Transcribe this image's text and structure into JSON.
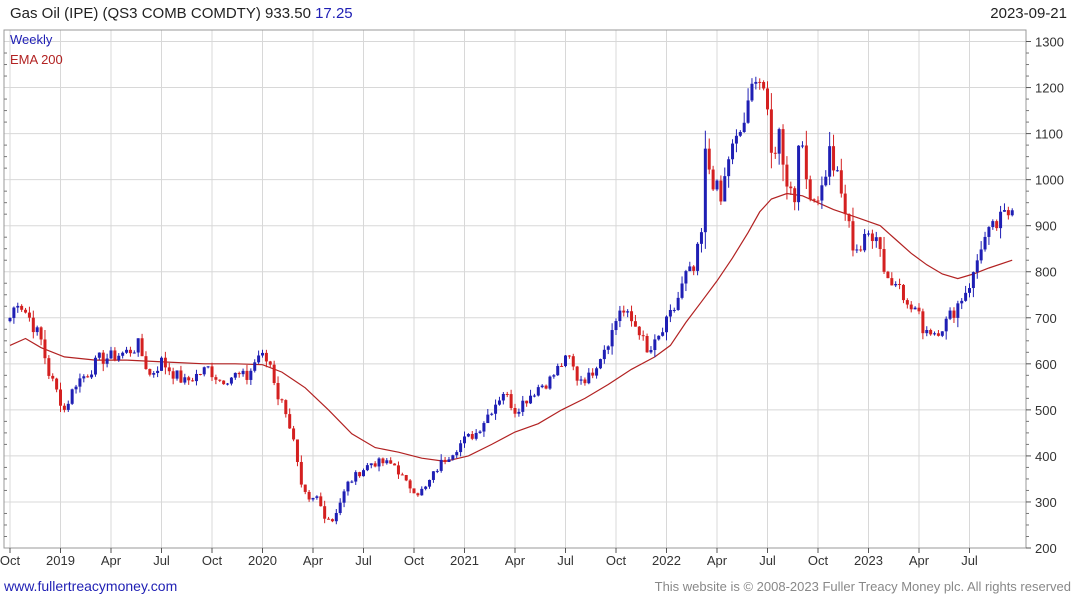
{
  "header": {
    "title": "Gas Oil (IPE) (QS3 COMB COMDTY)",
    "last_price": "933.50",
    "change": "17.25",
    "date": "2023-09-21"
  },
  "legend": {
    "period": "Weekly",
    "indicator": "EMA 200"
  },
  "footer": {
    "link": "www.fullertreacymoney.com",
    "copyright": "This website is © 2008-2023 Fuller Treacy Money plc. All rights reserved"
  },
  "colors": {
    "up": "#1f1fb4",
    "down": "#d42020",
    "ema": "#b22222",
    "grid": "#d8d8d8"
  },
  "chart_data": {
    "type": "candlestick",
    "title": "Gas Oil (IPE) (QS3 COMB COMDTY) 933.50 17.25",
    "period": "Weekly",
    "y_range": [
      200,
      1325
    ],
    "y_ticks": [
      "200",
      "300",
      "400",
      "500",
      "600",
      "700",
      "800",
      "900",
      "1000",
      "1100",
      "1200",
      "1300"
    ],
    "x_range": [
      0,
      260
    ],
    "x_ticks": [
      {
        "label": "Oct",
        "week": 0
      },
      {
        "label": "2019",
        "week": 13
      },
      {
        "label": "Apr",
        "week": 26
      },
      {
        "label": "Jul",
        "week": 39
      },
      {
        "label": "Oct",
        "week": 52
      },
      {
        "label": "2020",
        "week": 65
      },
      {
        "label": "Apr",
        "week": 78
      },
      {
        "label": "Jul",
        "week": 91
      },
      {
        "label": "Oct",
        "week": 104
      },
      {
        "label": "2021",
        "week": 117
      },
      {
        "label": "Apr",
        "week": 130
      },
      {
        "label": "Jul",
        "week": 143
      },
      {
        "label": "Oct",
        "week": 156
      },
      {
        "label": "2022",
        "week": 169
      },
      {
        "label": "Apr",
        "week": 182
      },
      {
        "label": "Jul",
        "week": 195
      },
      {
        "label": "Oct",
        "week": 208
      },
      {
        "label": "2023",
        "week": 221
      },
      {
        "label": "Apr",
        "week": 234
      },
      {
        "label": "Jul",
        "week": 247
      }
    ],
    "close_anchors": [
      [
        0,
        700
      ],
      [
        2,
        740
      ],
      [
        5,
        700
      ],
      [
        8,
        650
      ],
      [
        10,
        580
      ],
      [
        12,
        540
      ],
      [
        14,
        500
      ],
      [
        17,
        560
      ],
      [
        20,
        580
      ],
      [
        23,
        610
      ],
      [
        26,
        615
      ],
      [
        30,
        625
      ],
      [
        33,
        640
      ],
      [
        36,
        575
      ],
      [
        39,
        605
      ],
      [
        42,
        580
      ],
      [
        45,
        560
      ],
      [
        48,
        575
      ],
      [
        51,
        590
      ],
      [
        54,
        565
      ],
      [
        58,
        575
      ],
      [
        61,
        570
      ],
      [
        64,
        620
      ],
      [
        67,
        600
      ],
      [
        69,
        530
      ],
      [
        71,
        500
      ],
      [
        73,
        430
      ],
      [
        75,
        330
      ],
      [
        77,
        300
      ],
      [
        79,
        310
      ],
      [
        81,
        270
      ],
      [
        83,
        260
      ],
      [
        85,
        300
      ],
      [
        87,
        340
      ],
      [
        90,
        365
      ],
      [
        93,
        385
      ],
      [
        96,
        385
      ],
      [
        99,
        380
      ],
      [
        102,
        340
      ],
      [
        105,
        320
      ],
      [
        107,
        330
      ],
      [
        109,
        360
      ],
      [
        111,
        385
      ],
      [
        114,
        410
      ],
      [
        117,
        435
      ],
      [
        120,
        450
      ],
      [
        123,
        490
      ],
      [
        125,
        515
      ],
      [
        127,
        540
      ],
      [
        130,
        500
      ],
      [
        133,
        525
      ],
      [
        136,
        550
      ],
      [
        139,
        565
      ],
      [
        142,
        600
      ],
      [
        144,
        610
      ],
      [
        146,
        570
      ],
      [
        149,
        570
      ],
      [
        152,
        620
      ],
      [
        155,
        670
      ],
      [
        157,
        720
      ],
      [
        159,
        700
      ],
      [
        162,
        675
      ],
      [
        164,
        620
      ],
      [
        166,
        640
      ],
      [
        168,
        670
      ],
      [
        171,
        720
      ],
      [
        174,
        790
      ],
      [
        176,
        800
      ],
      [
        178,
        880
      ],
      [
        179,
        1050
      ],
      [
        181,
        1000
      ],
      [
        183,
        950
      ],
      [
        185,
        1050
      ],
      [
        187,
        1080
      ],
      [
        190,
        1150
      ],
      [
        192,
        1240
      ],
      [
        194,
        1200
      ],
      [
        196,
        1050
      ],
      [
        198,
        1100
      ],
      [
        200,
        1000
      ],
      [
        202,
        960
      ],
      [
        203,
        1100
      ],
      [
        205,
        1000
      ],
      [
        207,
        960
      ],
      [
        209,
        980
      ],
      [
        211,
        1060
      ],
      [
        213,
        1000
      ],
      [
        215,
        930
      ],
      [
        217,
        860
      ],
      [
        219,
        850
      ],
      [
        221,
        880
      ],
      [
        223,
        890
      ],
      [
        225,
        810
      ],
      [
        227,
        770
      ],
      [
        229,
        790
      ],
      [
        231,
        720
      ],
      [
        233,
        720
      ],
      [
        235,
        680
      ],
      [
        238,
        670
      ],
      [
        241,
        690
      ],
      [
        244,
        730
      ],
      [
        246,
        760
      ],
      [
        248,
        790
      ],
      [
        250,
        860
      ],
      [
        252,
        880
      ],
      [
        254,
        900
      ],
      [
        256,
        920
      ],
      [
        258,
        933.5
      ]
    ],
    "ema200_anchors": [
      [
        0,
        640
      ],
      [
        4,
        655
      ],
      [
        8,
        635
      ],
      [
        14,
        615
      ],
      [
        22,
        608
      ],
      [
        30,
        608
      ],
      [
        40,
        604
      ],
      [
        50,
        600
      ],
      [
        58,
        600
      ],
      [
        65,
        598
      ],
      [
        70,
        582
      ],
      [
        76,
        548
      ],
      [
        82,
        500
      ],
      [
        88,
        448
      ],
      [
        94,
        418
      ],
      [
        100,
        408
      ],
      [
        106,
        395
      ],
      [
        112,
        388
      ],
      [
        118,
        400
      ],
      [
        124,
        425
      ],
      [
        130,
        452
      ],
      [
        136,
        470
      ],
      [
        142,
        500
      ],
      [
        148,
        525
      ],
      [
        154,
        555
      ],
      [
        160,
        588
      ],
      [
        166,
        615
      ],
      [
        170,
        640
      ],
      [
        174,
        690
      ],
      [
        178,
        735
      ],
      [
        182,
        780
      ],
      [
        186,
        830
      ],
      [
        190,
        885
      ],
      [
        193,
        930
      ],
      [
        196,
        958
      ],
      [
        200,
        970
      ],
      [
        204,
        965
      ],
      [
        208,
        950
      ],
      [
        212,
        935
      ],
      [
        218,
        918
      ],
      [
        224,
        900
      ],
      [
        228,
        870
      ],
      [
        232,
        840
      ],
      [
        236,
        815
      ],
      [
        240,
        795
      ],
      [
        244,
        785
      ],
      [
        248,
        795
      ],
      [
        252,
        808
      ],
      [
        258,
        825
      ]
    ]
  }
}
